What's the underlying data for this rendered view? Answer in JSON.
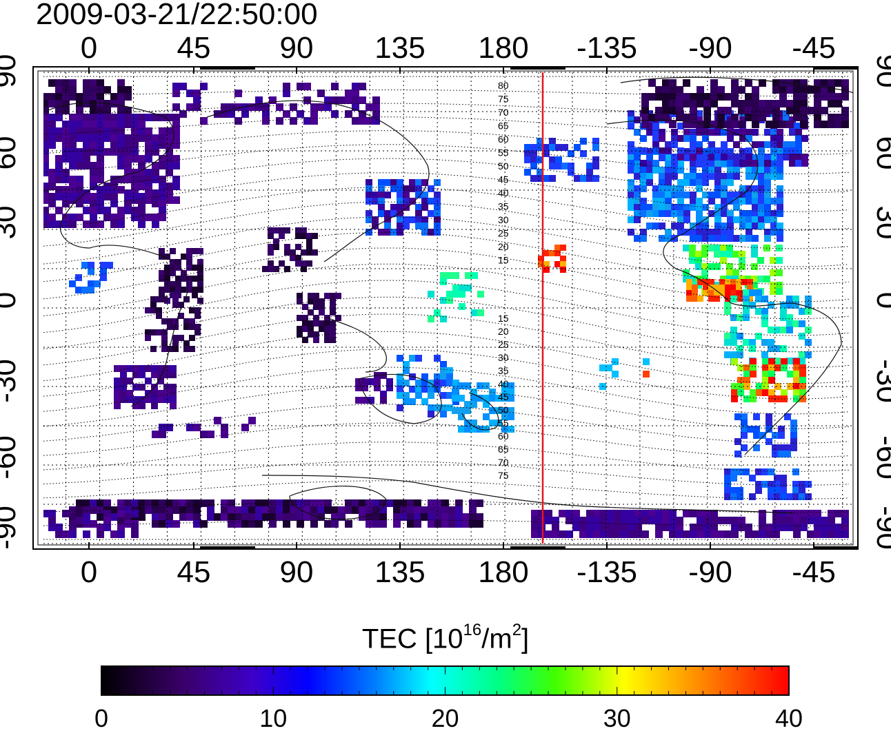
{
  "timestamp": "2009-03-21/22:50:00",
  "map": {
    "title_time": "2009-03-21/22:50:00",
    "projection": "equirectangular",
    "lon_center": 165,
    "top_lon_ticks": [
      "0",
      "45",
      "90",
      "135",
      "180",
      "-135",
      "-90",
      "-45"
    ],
    "bottom_lon_ticks": [
      "0",
      "45",
      "90",
      "135",
      "180",
      "-135",
      "-90",
      "-45"
    ],
    "left_lat_ticks": [
      "90",
      "60",
      "30",
      "0",
      "-30",
      "-60",
      "-90"
    ],
    "right_lat_ticks": [
      "90",
      "60",
      "30",
      "0",
      "-30",
      "-60",
      "-90"
    ],
    "red_meridian_lon": -160,
    "contour_labels_north": [
      "80",
      "75",
      "70",
      "65",
      "60",
      "55",
      "50",
      "45",
      "40",
      "35",
      "30",
      "25",
      "20",
      "15"
    ],
    "contour_labels_south": [
      "15",
      "20",
      "25",
      "30",
      "35",
      "40",
      "45",
      "50",
      "55",
      "60",
      "65",
      "70",
      "75"
    ],
    "grid": "dotted",
    "colors": {
      "red_line": "#e8141a",
      "coast": "#111111"
    }
  },
  "colorbar": {
    "title_prefix": "TEC  [10",
    "title_exp": "16",
    "title_mid": "/m",
    "title_exp2": "2",
    "title_suffix": "]",
    "tick_labels": [
      "0",
      "10",
      "20",
      "30",
      "40"
    ],
    "range": [
      0,
      40
    ],
    "colormap": [
      "#000000",
      "#4a0080",
      "#0000ff",
      "#00ffff",
      "#00ff00",
      "#ffff00",
      "#ff0000"
    ]
  }
}
